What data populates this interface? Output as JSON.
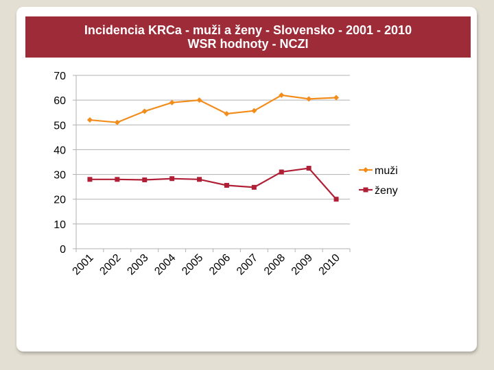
{
  "title_bar": {
    "line1": "Incidencia KRCa - muži a ženy - Slovensko - 2001 - 2010",
    "line2": "WSR hodnoty - NCZI"
  },
  "colors": {
    "title_bg": "#9e2b38",
    "muzi": "#f28c1a",
    "zeny": "#b01f35",
    "grid": "#b0b0b0",
    "background": "#e4dfd3"
  },
  "chart_data": {
    "type": "line",
    "title": "Incidencia KRCa - muži a ženy - Slovensko - 2001 - 2010 WSR hodnoty - NCZI",
    "categories": [
      "2001",
      "2002",
      "2003",
      "2004",
      "2005",
      "2006",
      "2007",
      "2008",
      "2009",
      "2010"
    ],
    "series": [
      {
        "name": "muži",
        "marker": "diamond",
        "values": [
          52,
          51,
          55.5,
          59,
          60,
          54.5,
          55.7,
          62,
          60.5,
          61
        ]
      },
      {
        "name": "ženy",
        "marker": "square",
        "values": [
          28,
          28,
          27.8,
          28.3,
          28,
          25.6,
          24.8,
          31,
          32.5,
          20
        ]
      }
    ],
    "ylim": [
      0,
      70
    ],
    "yticks": [
      0,
      10,
      20,
      30,
      40,
      50,
      60,
      70
    ],
    "grid": true,
    "legend_position": "right"
  }
}
